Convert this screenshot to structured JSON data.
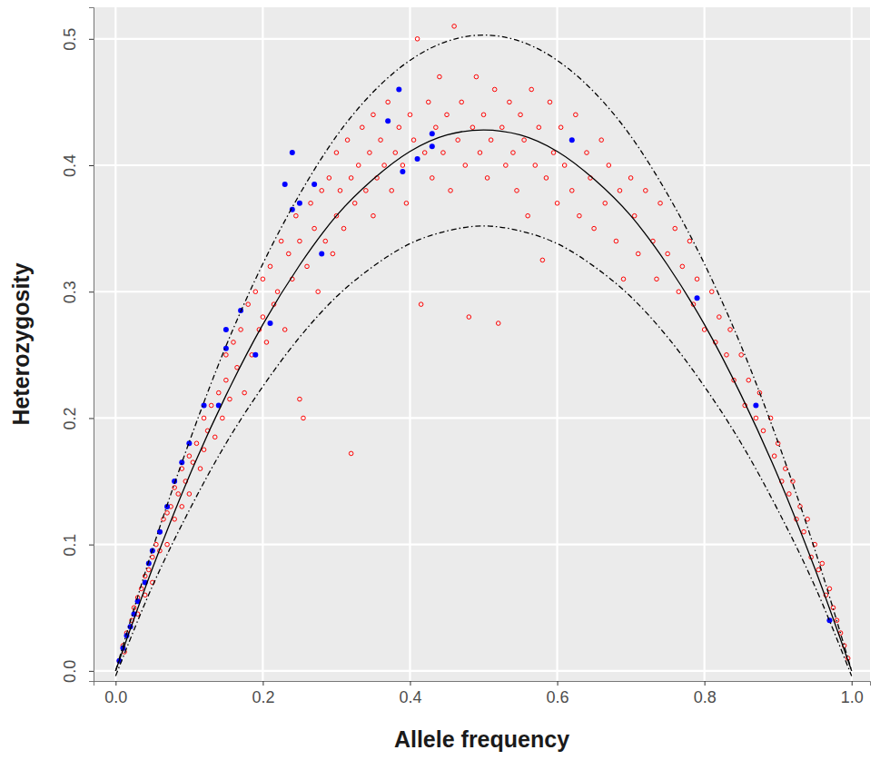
{
  "chart_data": {
    "type": "scatter",
    "x_label": "Allele frequency",
    "y_label": "Heterozygosity",
    "xlim": [
      -0.03,
      1.025
    ],
    "ylim": [
      -0.008,
      0.525
    ],
    "xticks": [
      {
        "value": 0,
        "label": "0.0"
      },
      {
        "value": 0.2,
        "label": "0.2"
      },
      {
        "value": 0.4,
        "label": "0.4"
      },
      {
        "value": 0.6,
        "label": "0.6"
      },
      {
        "value": 0.8,
        "label": "0.8"
      },
      {
        "value": 1,
        "label": "1.0"
      }
    ],
    "yticks": [
      {
        "value": 0,
        "label": "0.0"
      },
      {
        "value": 0.1,
        "label": "0.1"
      },
      {
        "value": 0.2,
        "label": "0.2"
      },
      {
        "value": 0.3,
        "label": "0.3"
      },
      {
        "value": 0.4,
        "label": "0.4"
      },
      {
        "value": 0.5,
        "label": "0.5"
      }
    ],
    "grid": true,
    "series": [
      {
        "type": "scatter",
        "color": "#ff0000",
        "marker": "open-circle",
        "x": [
          0.005,
          0.01,
          0.012,
          0.015,
          0.02,
          0.022,
          0.025,
          0.03,
          0.03,
          0.035,
          0.04,
          0.04,
          0.045,
          0.05,
          0.05,
          0.055,
          0.06,
          0.06,
          0.065,
          0.07,
          0.07,
          0.075,
          0.08,
          0.08,
          0.085,
          0.09,
          0.09,
          0.095,
          0.1,
          0.1,
          0.105,
          0.11,
          0.115,
          0.12,
          0.12,
          0.125,
          0.13,
          0.135,
          0.14,
          0.145,
          0.15,
          0.15,
          0.155,
          0.16,
          0.165,
          0.17,
          0.175,
          0.18,
          0.185,
          0.19,
          0.195,
          0.2,
          0.2,
          0.205,
          0.21,
          0.215,
          0.22,
          0.225,
          0.23,
          0.235,
          0.24,
          0.245,
          0.25,
          0.25,
          0.255,
          0.26,
          0.265,
          0.27,
          0.275,
          0.28,
          0.285,
          0.29,
          0.295,
          0.3,
          0.3,
          0.305,
          0.31,
          0.315,
          0.32,
          0.32,
          0.325,
          0.33,
          0.335,
          0.34,
          0.345,
          0.35,
          0.35,
          0.355,
          0.36,
          0.365,
          0.37,
          0.375,
          0.38,
          0.385,
          0.39,
          0.395,
          0.4,
          0.405,
          0.41,
          0.415,
          0.42,
          0.425,
          0.43,
          0.435,
          0.44,
          0.445,
          0.45,
          0.455,
          0.46,
          0.465,
          0.47,
          0.475,
          0.48,
          0.485,
          0.49,
          0.495,
          0.5,
          0.505,
          0.51,
          0.515,
          0.52,
          0.525,
          0.53,
          0.535,
          0.54,
          0.545,
          0.55,
          0.555,
          0.56,
          0.565,
          0.57,
          0.575,
          0.58,
          0.585,
          0.59,
          0.595,
          0.6,
          0.605,
          0.61,
          0.62,
          0.625,
          0.63,
          0.64,
          0.645,
          0.65,
          0.66,
          0.665,
          0.67,
          0.68,
          0.685,
          0.69,
          0.7,
          0.705,
          0.71,
          0.72,
          0.73,
          0.735,
          0.74,
          0.75,
          0.76,
          0.765,
          0.77,
          0.78,
          0.785,
          0.79,
          0.8,
          0.81,
          0.815,
          0.82,
          0.83,
          0.835,
          0.84,
          0.85,
          0.855,
          0.86,
          0.87,
          0.875,
          0.88,
          0.89,
          0.895,
          0.9,
          0.905,
          0.91,
          0.915,
          0.92,
          0.925,
          0.93,
          0.935,
          0.94,
          0.945,
          0.95,
          0.955,
          0.96,
          0.965,
          0.97,
          0.975,
          0.98,
          0.985,
          0.99,
          0.995
        ],
        "values": [
          0.008,
          0.02,
          0.015,
          0.03,
          0.035,
          0.04,
          0.05,
          0.045,
          0.058,
          0.065,
          0.06,
          0.075,
          0.08,
          0.07,
          0.09,
          0.1,
          0.095,
          0.11,
          0.12,
          0.1,
          0.125,
          0.13,
          0.12,
          0.145,
          0.14,
          0.13,
          0.16,
          0.15,
          0.14,
          0.17,
          0.165,
          0.18,
          0.16,
          0.2,
          0.175,
          0.19,
          0.21,
          0.185,
          0.22,
          0.2,
          0.23,
          0.25,
          0.215,
          0.26,
          0.24,
          0.27,
          0.22,
          0.29,
          0.25,
          0.3,
          0.27,
          0.28,
          0.31,
          0.26,
          0.32,
          0.29,
          0.3,
          0.34,
          0.27,
          0.33,
          0.31,
          0.36,
          0.215,
          0.34,
          0.2,
          0.32,
          0.37,
          0.35,
          0.3,
          0.38,
          0.34,
          0.39,
          0.33,
          0.36,
          0.41,
          0.38,
          0.35,
          0.42,
          0.172,
          0.39,
          0.37,
          0.4,
          0.43,
          0.38,
          0.41,
          0.36,
          0.44,
          0.39,
          0.42,
          0.4,
          0.45,
          0.38,
          0.41,
          0.43,
          0.4,
          0.37,
          0.44,
          0.42,
          0.5,
          0.29,
          0.41,
          0.45,
          0.39,
          0.43,
          0.47,
          0.41,
          0.44,
          0.38,
          0.51,
          0.42,
          0.45,
          0.4,
          0.28,
          0.43,
          0.47,
          0.41,
          0.44,
          0.39,
          0.42,
          0.46,
          0.275,
          0.43,
          0.4,
          0.45,
          0.41,
          0.38,
          0.44,
          0.42,
          0.36,
          0.46,
          0.4,
          0.43,
          0.325,
          0.39,
          0.45,
          0.41,
          0.37,
          0.43,
          0.4,
          0.38,
          0.44,
          0.36,
          0.41,
          0.39,
          0.35,
          0.42,
          0.37,
          0.4,
          0.34,
          0.38,
          0.31,
          0.39,
          0.36,
          0.33,
          0.38,
          0.34,
          0.31,
          0.37,
          0.33,
          0.35,
          0.3,
          0.32,
          0.34,
          0.29,
          0.31,
          0.27,
          0.3,
          0.26,
          0.28,
          0.25,
          0.27,
          0.23,
          0.25,
          0.21,
          0.23,
          0.2,
          0.22,
          0.19,
          0.2,
          0.17,
          0.18,
          0.15,
          0.16,
          0.14,
          0.15,
          0.12,
          0.13,
          0.11,
          0.12,
          0.09,
          0.1,
          0.08,
          0.085,
          0.06,
          0.065,
          0.05,
          0.04,
          0.03,
          0.02,
          0.01
        ]
      },
      {
        "type": "scatter",
        "color": "#0000ff",
        "marker": "circle",
        "x": [
          0.005,
          0.01,
          0.015,
          0.02,
          0.025,
          0.03,
          0.04,
          0.045,
          0.05,
          0.06,
          0.07,
          0.08,
          0.09,
          0.1,
          0.12,
          0.14,
          0.15,
          0.15,
          0.17,
          0.19,
          0.21,
          0.23,
          0.24,
          0.24,
          0.25,
          0.27,
          0.28,
          0.37,
          0.385,
          0.39,
          0.41,
          0.43,
          0.43,
          0.62,
          0.79,
          0.87,
          0.97
        ],
        "values": [
          0.008,
          0.018,
          0.028,
          0.035,
          0.045,
          0.055,
          0.07,
          0.085,
          0.095,
          0.11,
          0.13,
          0.15,
          0.165,
          0.18,
          0.21,
          0.21,
          0.255,
          0.27,
          0.285,
          0.25,
          0.275,
          0.385,
          0.365,
          0.41,
          0.37,
          0.385,
          0.33,
          0.435,
          0.46,
          0.395,
          0.405,
          0.415,
          0.425,
          0.42,
          0.295,
          0.21,
          0.04
        ]
      },
      {
        "type": "line",
        "color": "#000000",
        "line_style": "solid",
        "x": [
          0,
          0.05,
          0.1,
          0.15,
          0.2,
          0.25,
          0.3,
          0.35,
          0.4,
          0.45,
          0.5,
          0.55,
          0.6,
          0.65,
          0.7,
          0.75,
          0.8,
          0.85,
          0.9,
          0.95,
          1
        ],
        "values": [
          0,
          0.081,
          0.154,
          0.218,
          0.274,
          0.321,
          0.36,
          0.389,
          0.411,
          0.424,
          0.428,
          0.424,
          0.411,
          0.389,
          0.36,
          0.321,
          0.274,
          0.218,
          0.154,
          0.081,
          0
        ]
      },
      {
        "type": "line",
        "color": "#000000",
        "line_style": "dashdot",
        "x": [
          0,
          0.05,
          0.1,
          0.15,
          0.2,
          0.25,
          0.3,
          0.35,
          0.4,
          0.45,
          0.5,
          0.55,
          0.6,
          0.65,
          0.7,
          0.75,
          0.8,
          0.85,
          0.9,
          0.95,
          1
        ],
        "values": [
          0,
          0.096,
          0.181,
          0.257,
          0.322,
          0.377,
          0.423,
          0.458,
          0.483,
          0.498,
          0.503,
          0.498,
          0.483,
          0.458,
          0.423,
          0.377,
          0.322,
          0.257,
          0.181,
          0.096,
          0
        ]
      },
      {
        "type": "line",
        "color": "#000000",
        "line_style": "dashdot",
        "x": [
          0,
          0.05,
          0.1,
          0.15,
          0.2,
          0.25,
          0.3,
          0.35,
          0.4,
          0.45,
          0.5,
          0.55,
          0.6,
          0.65,
          0.7,
          0.75,
          0.8,
          0.85,
          0.9,
          0.95,
          1
        ],
        "values": [
          -0.004,
          0.067,
          0.127,
          0.18,
          0.225,
          0.264,
          0.296,
          0.32,
          0.338,
          0.348,
          0.352,
          0.348,
          0.338,
          0.32,
          0.296,
          0.264,
          0.225,
          0.18,
          0.127,
          0.067,
          -0.004
        ]
      }
    ]
  }
}
